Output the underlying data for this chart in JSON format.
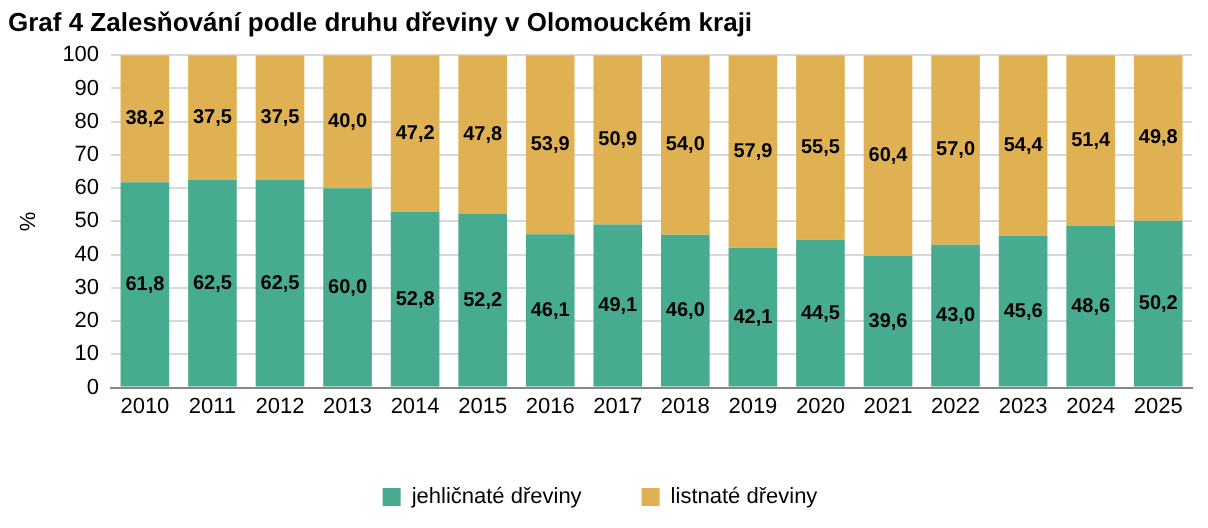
{
  "chart_data": {
    "type": "bar",
    "title": "Graf 4 Zalesňování podle druhu dřeviny v Olomouckém kraji",
    "ylabel": "%",
    "categories": [
      "2010",
      "2011",
      "2012",
      "2013",
      "2014",
      "2015",
      "2016",
      "2017",
      "2018",
      "2019",
      "2020",
      "2021",
      "2022",
      "2023",
      "2024",
      "2025"
    ],
    "stacked": true,
    "ylim": [
      0,
      100
    ],
    "yticks": [
      0,
      10,
      20,
      30,
      40,
      50,
      60,
      70,
      80,
      90,
      100
    ],
    "grid": "y",
    "legend": "bottom",
    "series": [
      {
        "name": "jehličnaté dřeviny",
        "color": "#47ab8f",
        "values": [
          61.8,
          62.5,
          62.5,
          60.0,
          52.8,
          52.2,
          46.1,
          49.1,
          46.0,
          42.1,
          44.5,
          39.6,
          43.0,
          45.6,
          48.6,
          50.2
        ],
        "value_labels": [
          "61,8",
          "62,5",
          "62,5",
          "60,0",
          "52,8",
          "52,2",
          "46,1",
          "49,1",
          "46,0",
          "42,1",
          "44,5",
          "39,6",
          "43,0",
          "45,6",
          "48,6",
          "50,2"
        ]
      },
      {
        "name": "listnaté dřeviny",
        "color": "#e0b152",
        "values": [
          38.2,
          37.5,
          37.5,
          40.0,
          47.2,
          47.8,
          53.9,
          50.9,
          54.0,
          57.9,
          55.5,
          60.4,
          57.0,
          54.4,
          51.4,
          49.8
        ],
        "value_labels": [
          "38,2",
          "37,5",
          "37,5",
          "40,0",
          "47,2",
          "47,8",
          "53,9",
          "50,9",
          "54,0",
          "57,9",
          "55,5",
          "60,4",
          "57,0",
          "54,4",
          "51,4",
          "49,8"
        ]
      }
    ]
  }
}
